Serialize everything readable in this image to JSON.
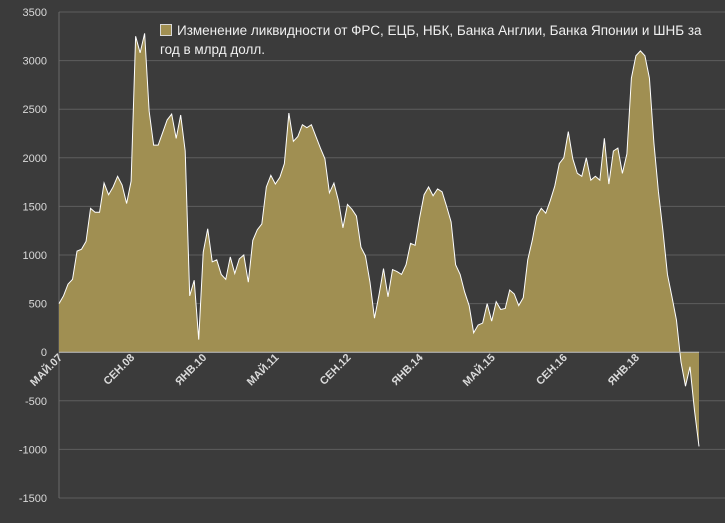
{
  "chart_data": {
    "type": "area",
    "title": "",
    "xlabel": "",
    "ylabel": "",
    "ylim": [
      -1500,
      3500
    ],
    "yticks": [
      -1500,
      -1000,
      -500,
      0,
      500,
      1000,
      1500,
      2000,
      2500,
      3000,
      3500
    ],
    "xtick_labels": [
      "МАЙ.07",
      "СЕН.08",
      "ЯНВ.10",
      "МАЙ.11",
      "СЕН.12",
      "ЯНВ.14",
      "МАЙ.15",
      "СЕН.16",
      "ЯНВ.18"
    ],
    "xtick_index": [
      0,
      16,
      32,
      48,
      64,
      80,
      96,
      112,
      128
    ],
    "grid": true,
    "legend_position": "top-right",
    "colors": {
      "fill": "#a08f52",
      "line": "#ffffff",
      "background": "#3b3b3b",
      "grid": "#5e5e5e",
      "axis_text": "#d9d9d9"
    },
    "series": [
      {
        "name": "Изменение ликвидности от ФРС, ЕЦБ, НБК, Банка Англии, Банка Японии и ШНБ за год в млрд долл.",
        "x_start": "2007-05",
        "frequency": "monthly",
        "values": [
          500,
          580,
          700,
          750,
          1040,
          1060,
          1140,
          1480,
          1440,
          1440,
          1740,
          1620,
          1700,
          1810,
          1720,
          1530,
          1760,
          3250,
          3080,
          3280,
          2480,
          2130,
          2130,
          2260,
          2390,
          2450,
          2200,
          2440,
          2070,
          580,
          740,
          130,
          1030,
          1270,
          930,
          950,
          800,
          750,
          980,
          810,
          960,
          1000,
          720,
          1150,
          1260,
          1320,
          1700,
          1820,
          1730,
          1800,
          1940,
          2460,
          2170,
          2220,
          2340,
          2310,
          2340,
          2220,
          2100,
          1990,
          1640,
          1740,
          1560,
          1280,
          1520,
          1470,
          1400,
          1080,
          990,
          720,
          350,
          590,
          860,
          570,
          850,
          830,
          800,
          900,
          1120,
          1100,
          1380,
          1620,
          1700,
          1610,
          1680,
          1650,
          1500,
          1340,
          900,
          800,
          620,
          480,
          200,
          280,
          300,
          500,
          320,
          520,
          440,
          450,
          640,
          600,
          480,
          560,
          950,
          1150,
          1400,
          1480,
          1430,
          1560,
          1710,
          1940,
          2000,
          2270,
          1990,
          1840,
          1810,
          2000,
          1770,
          1810,
          1770,
          2200,
          1730,
          2070,
          2100,
          1840,
          2040,
          2820,
          3050,
          3100,
          3050,
          2820,
          2150,
          1650,
          1250,
          800,
          570,
          330,
          -100,
          -350,
          -150,
          -600,
          -970
        ]
      }
    ]
  }
}
